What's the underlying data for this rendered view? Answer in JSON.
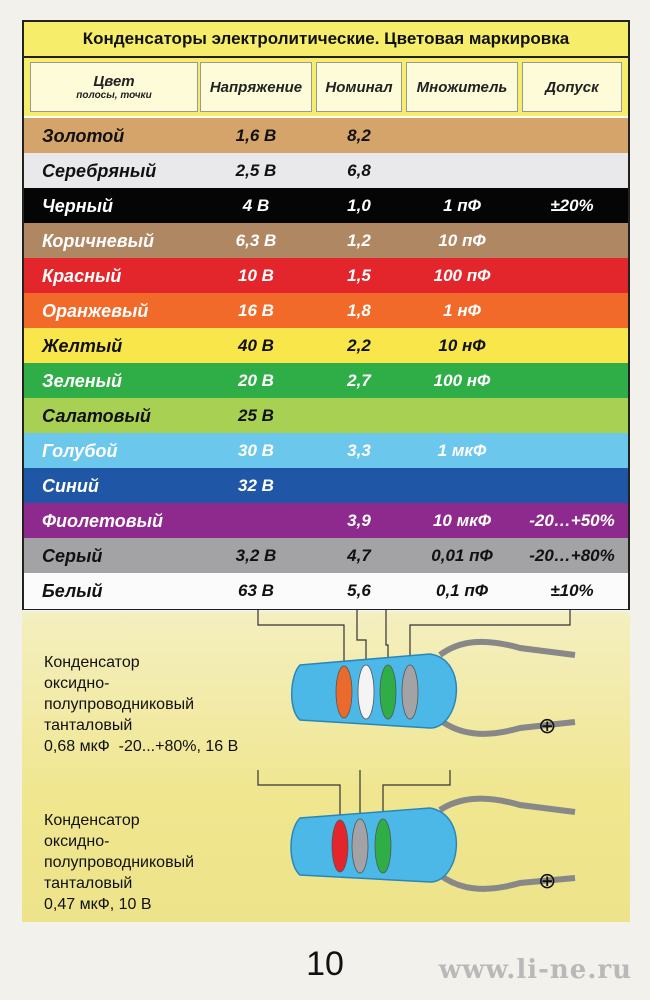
{
  "title": "Конденсаторы электролитические. Цветовая маркировка",
  "headers": {
    "color_main": "Цвет",
    "color_sub": "полосы, точки",
    "voltage": "Напряжение",
    "nominal": "Номинал",
    "multiplier": "Множитель",
    "tolerance": "Допуск"
  },
  "rows": [
    {
      "name": "Золотой",
      "voltage": "1,6 В",
      "nominal": "8,2",
      "multiplier": "",
      "tolerance": "",
      "bg": "#d4a46a",
      "fg": "#111111"
    },
    {
      "name": "Серебряный",
      "voltage": "2,5 В",
      "nominal": "6,8",
      "multiplier": "",
      "tolerance": "",
      "bg": "#e9e9eb",
      "fg": "#111111"
    },
    {
      "name": "Черный",
      "voltage": "4 В",
      "nominal": "1,0",
      "multiplier": "1 пФ",
      "tolerance": "±20%",
      "bg": "#050505",
      "fg": "#ffffff"
    },
    {
      "name": "Коричневый",
      "voltage": "6,3 В",
      "nominal": "1,2",
      "multiplier": "10 пФ",
      "tolerance": "",
      "bg": "#b08763",
      "fg": "#ffffff"
    },
    {
      "name": "Красный",
      "voltage": "10 В",
      "nominal": "1,5",
      "multiplier": "100 пФ",
      "tolerance": "",
      "bg": "#e3262b",
      "fg": "#ffffff"
    },
    {
      "name": "Оранжевый",
      "voltage": "16 В",
      "nominal": "1,8",
      "multiplier": "1 нФ",
      "tolerance": "",
      "bg": "#f16a2a",
      "fg": "#ffffff"
    },
    {
      "name": "Желтый",
      "voltage": "40 В",
      "nominal": "2,2",
      "multiplier": "10 нФ",
      "tolerance": "",
      "bg": "#f8e64a",
      "fg": "#111111"
    },
    {
      "name": "Зеленый",
      "voltage": "20 В",
      "nominal": "2,7",
      "multiplier": "100 нФ",
      "tolerance": "",
      "bg": "#2fae48",
      "fg": "#ffffff"
    },
    {
      "name": "Салатовый",
      "voltage": "25 В",
      "nominal": "",
      "multiplier": "",
      "tolerance": "",
      "bg": "#a8d052",
      "fg": "#111111"
    },
    {
      "name": "Голубой",
      "voltage": "30 В",
      "nominal": "3,3",
      "multiplier": "1 мкФ",
      "tolerance": "",
      "bg": "#6cc7ec",
      "fg": "#ffffff"
    },
    {
      "name": "Синий",
      "voltage": "32 В",
      "nominal": "",
      "multiplier": "",
      "tolerance": "",
      "bg": "#1f56a6",
      "fg": "#ffffff"
    },
    {
      "name": "Фиолетовый",
      "voltage": "",
      "nominal": "3,9",
      "multiplier": "10 мкФ",
      "tolerance": "-20…+50%",
      "bg": "#8e2a8e",
      "fg": "#ffffff"
    },
    {
      "name": "Серый",
      "voltage": "3,2 В",
      "nominal": "4,7",
      "multiplier": "0,01 пФ",
      "tolerance": "-20…+80%",
      "bg": "#a3a3a6",
      "fg": "#111111"
    },
    {
      "name": "Белый",
      "voltage": "63 В",
      "nominal": "5,6",
      "multiplier": "0,1 пФ",
      "tolerance": "±10%",
      "bg": "#fbfbfb",
      "fg": "#111111"
    }
  ],
  "capacitor1": {
    "line1": "Конденсатор",
    "line2": "оксидно-",
    "line3": "полупроводниковый",
    "line4": "танталовый",
    "line5": "0,68 мкФ  -20...+80%, 16 В",
    "band_colors": [
      "#e96a2a",
      "#f4f4f4",
      "#2fae48",
      "#a3a3a6"
    ],
    "polarity": "⊕"
  },
  "capacitor2": {
    "line1": "Конденсатор",
    "line2": "оксидно-",
    "line3": "полупроводниковый",
    "line4": "танталовый",
    "line5": "0,47 мкФ, 10 В",
    "band_colors": [
      "#e3262b",
      "#a3a3a6",
      "#2fae48"
    ],
    "polarity": "⊕"
  },
  "page_number": "10",
  "watermark": "www.li-ne.ru",
  "colors": {
    "title_bg": "#f6ee6a",
    "capacitor_body": "#4bb8e8"
  }
}
